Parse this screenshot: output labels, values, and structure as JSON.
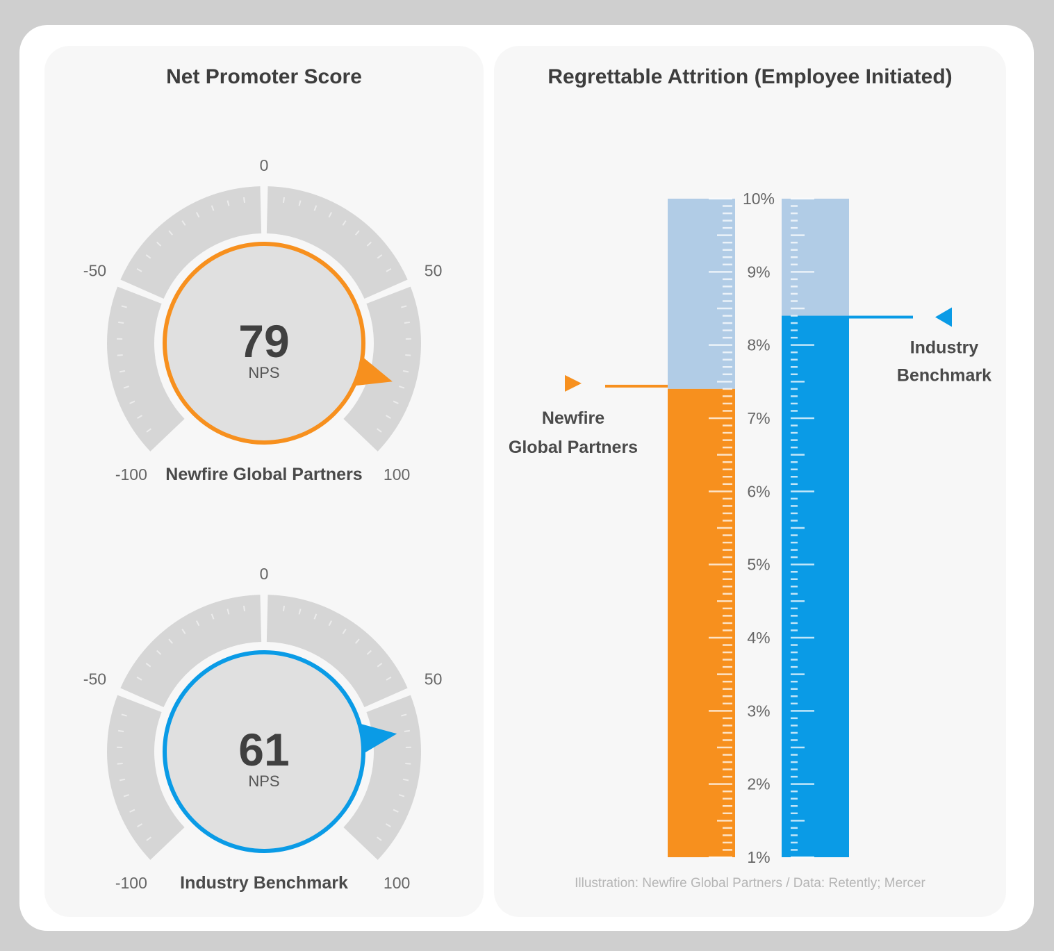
{
  "chart_data": [
    {
      "type": "gauge",
      "title": "Net Promoter Score",
      "range": [
        -100,
        100
      ],
      "ticks": [
        "-100",
        "-50",
        "0",
        "50",
        "100"
      ],
      "gauges": [
        {
          "name": "Newfire Global Partners",
          "value": 79,
          "display": "79",
          "unit": "NPS",
          "color": "#f7901e"
        },
        {
          "name": "Industry Benchmark",
          "value": 61,
          "display": "61",
          "unit": "NPS",
          "color": "#0a9be6"
        }
      ]
    },
    {
      "type": "bar",
      "title": "Regrettable Attrition (Employee Initiated)",
      "ylim": [
        1,
        10
      ],
      "ytick_labels": [
        "10%",
        "9%",
        "8%",
        "7%",
        "6%",
        "5%",
        "4%",
        "3%",
        "2%",
        "1%"
      ],
      "series": [
        {
          "name": "Newfire Global Partners",
          "label_lines": [
            "Newfire",
            "Global Partners"
          ],
          "value": 7.4,
          "color": "#f7901e"
        },
        {
          "name": "Industry Benchmark",
          "label_lines": [
            "Industry",
            "Benchmark"
          ],
          "value": 8.4,
          "color": "#0a9be6"
        }
      ],
      "empty_color": "#b1cce6"
    }
  ],
  "footer": "Illustration: Newfire Global Partners / Data: Retently; Mercer"
}
